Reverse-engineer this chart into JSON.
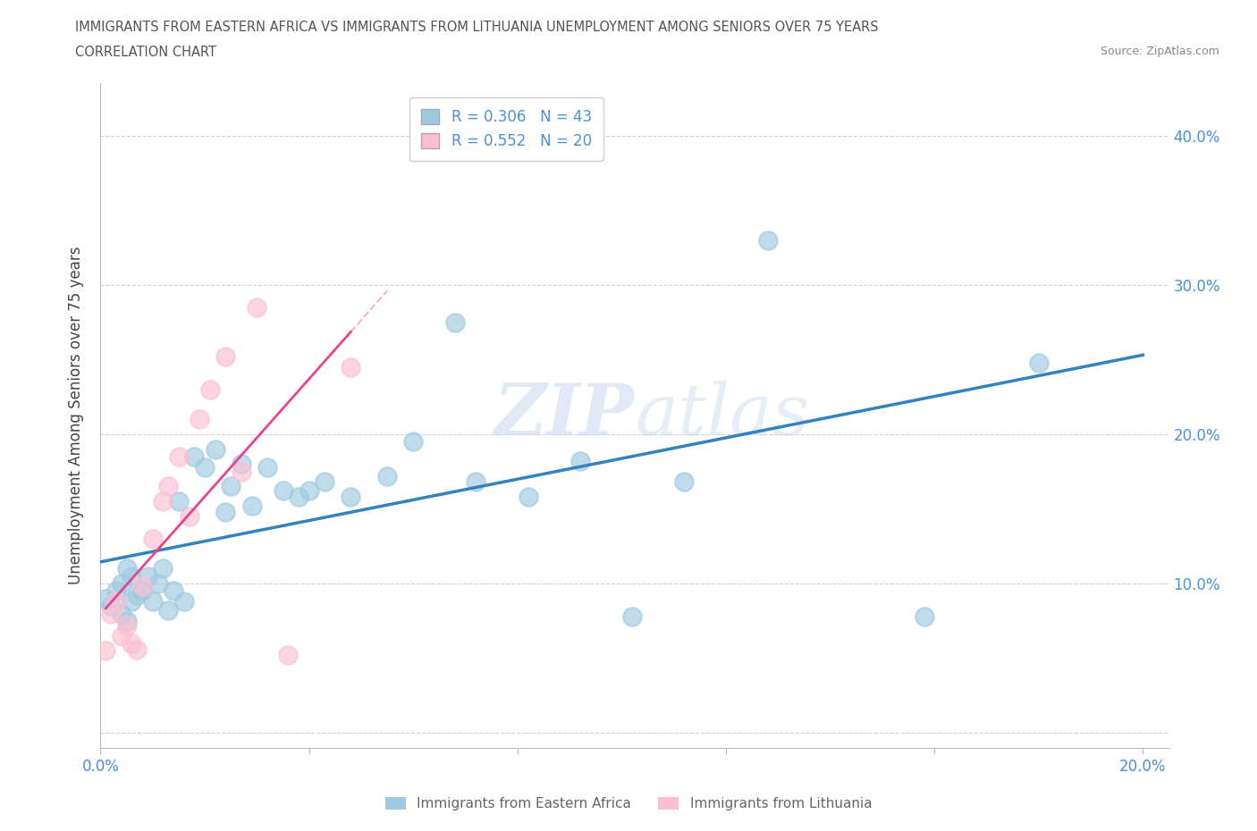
{
  "title_line1": "IMMIGRANTS FROM EASTERN AFRICA VS IMMIGRANTS FROM LITHUANIA UNEMPLOYMENT AMONG SENIORS OVER 75 YEARS",
  "title_line2": "CORRELATION CHART",
  "source": "Source: ZipAtlas.com",
  "ylabel": "Unemployment Among Seniors over 75 years",
  "xlim": [
    0.0,
    0.205
  ],
  "ylim": [
    -0.01,
    0.435
  ],
  "x_ticks": [
    0.0,
    0.04,
    0.08,
    0.12,
    0.16,
    0.2
  ],
  "y_ticks": [
    0.0,
    0.1,
    0.2,
    0.3,
    0.4
  ],
  "color_blue": "#9ecae1",
  "color_pink": "#fcbfd2",
  "color_blue_line": "#3182bd",
  "color_pink_line": "#e84393",
  "watermark_zip": "ZIP",
  "watermark_atlas": "atlas",
  "eastern_africa_x": [
    0.001,
    0.002,
    0.003,
    0.004,
    0.004,
    0.005,
    0.005,
    0.006,
    0.006,
    0.007,
    0.008,
    0.009,
    0.01,
    0.011,
    0.012,
    0.013,
    0.014,
    0.015,
    0.016,
    0.018,
    0.02,
    0.022,
    0.024,
    0.025,
    0.027,
    0.029,
    0.032,
    0.035,
    0.038,
    0.04,
    0.043,
    0.048,
    0.055,
    0.06,
    0.068,
    0.072,
    0.082,
    0.092,
    0.102,
    0.112,
    0.128,
    0.158,
    0.18
  ],
  "eastern_africa_y": [
    0.09,
    0.085,
    0.095,
    0.1,
    0.08,
    0.11,
    0.075,
    0.105,
    0.088,
    0.092,
    0.095,
    0.105,
    0.088,
    0.1,
    0.11,
    0.082,
    0.095,
    0.155,
    0.088,
    0.185,
    0.178,
    0.19,
    0.148,
    0.165,
    0.18,
    0.152,
    0.178,
    0.162,
    0.158,
    0.162,
    0.168,
    0.158,
    0.172,
    0.195,
    0.275,
    0.168,
    0.158,
    0.182,
    0.078,
    0.168,
    0.33,
    0.078,
    0.248
  ],
  "lithuania_x": [
    0.001,
    0.002,
    0.003,
    0.004,
    0.005,
    0.006,
    0.007,
    0.008,
    0.01,
    0.012,
    0.013,
    0.015,
    0.017,
    0.019,
    0.021,
    0.024,
    0.027,
    0.03,
    0.036,
    0.048
  ],
  "lithuania_y": [
    0.055,
    0.08,
    0.088,
    0.065,
    0.072,
    0.06,
    0.056,
    0.098,
    0.13,
    0.155,
    0.165,
    0.185,
    0.145,
    0.21,
    0.23,
    0.252,
    0.175,
    0.285,
    0.052,
    0.245
  ]
}
